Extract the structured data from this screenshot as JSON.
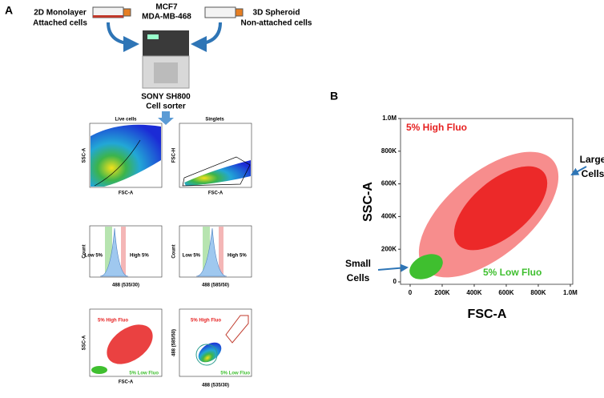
{
  "panel_a": {
    "label": "A",
    "left_source": [
      "2D Monolayer",
      "Attached cells"
    ],
    "cell_lines": [
      "MCF7",
      "MDA-MB-468"
    ],
    "right_source": [
      "3D Spheroid",
      "Non-attached cells"
    ],
    "instrument": [
      "SONY SH800",
      "Cell sorter"
    ],
    "plots": [
      {
        "title": "Live cells",
        "y_label": "SSC-A",
        "x_label": "FSC-A"
      },
      {
        "title": "Singlets",
        "y_label": "FSC-H",
        "x_label": "FSC-A"
      },
      {
        "y_label": "Count",
        "x_label": "488 (535/30)",
        "low": "Low 5%",
        "high": "High 5%"
      },
      {
        "y_label": "Count",
        "x_label": "488 (585/50)",
        "low": "Low 5%",
        "high": "High 5%"
      },
      {
        "y_label": "SSC-A",
        "x_label": "FSC-A",
        "high": "5% High Fluo",
        "low": "5% Low Fluo"
      },
      {
        "y_label": "488 (585/50)",
        "x_label": "488 (535/30)",
        "high": "5% High Fluo",
        "low": "5% Low Fluo"
      }
    ]
  },
  "panel_b": {
    "label": "B",
    "x_label": "FSC-A",
    "y_label": "SSC-A",
    "x_ticks": [
      "0",
      "200K",
      "400K",
      "600K",
      "800K",
      "1.0M"
    ],
    "y_ticks": [
      "0",
      "200K",
      "400K",
      "600K",
      "800K",
      "1.0M"
    ],
    "high_label": "5% High Fluo",
    "low_label": "5% Low Fluo",
    "large_cells": [
      "Large",
      "Cells"
    ],
    "small_cells": [
      "Small",
      "Cells"
    ]
  }
}
